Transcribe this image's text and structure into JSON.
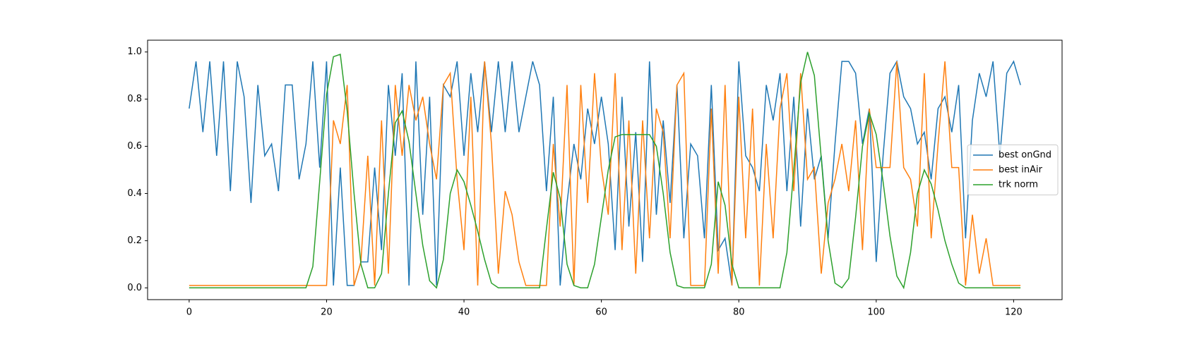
{
  "chart_data": {
    "type": "line",
    "x": [
      0,
      1,
      2,
      3,
      4,
      5,
      6,
      7,
      8,
      9,
      10,
      11,
      12,
      13,
      14,
      15,
      16,
      17,
      18,
      19,
      20,
      21,
      22,
      23,
      24,
      25,
      26,
      27,
      28,
      29,
      30,
      31,
      32,
      33,
      34,
      35,
      36,
      37,
      38,
      39,
      40,
      41,
      42,
      43,
      44,
      45,
      46,
      47,
      48,
      49,
      50,
      51,
      52,
      53,
      54,
      55,
      56,
      57,
      58,
      59,
      60,
      61,
      62,
      63,
      64,
      65,
      66,
      67,
      68,
      69,
      70,
      71,
      72,
      73,
      74,
      75,
      76,
      77,
      78,
      79,
      80,
      81,
      82,
      83,
      84,
      85,
      86,
      87,
      88,
      89,
      90,
      91,
      92,
      93,
      94,
      95,
      96,
      97,
      98,
      99,
      100,
      101,
      102,
      103,
      104,
      105,
      106,
      107,
      108,
      109,
      110,
      111,
      112,
      113,
      114,
      115,
      116,
      117,
      118,
      119,
      120,
      121
    ],
    "series": [
      {
        "name": "best onGnd",
        "color": "#1f77b4",
        "values": [
          0.76,
          0.96,
          0.66,
          0.96,
          0.56,
          0.96,
          0.41,
          0.96,
          0.81,
          0.36,
          0.86,
          0.56,
          0.61,
          0.41,
          0.86,
          0.86,
          0.46,
          0.61,
          0.96,
          0.51,
          0.96,
          0.01,
          0.51,
          0.01,
          0.01,
          0.11,
          0.11,
          0.51,
          0.16,
          0.86,
          0.56,
          0.91,
          0.01,
          0.96,
          0.31,
          0.81,
          0.01,
          0.86,
          0.81,
          0.96,
          0.56,
          0.91,
          0.66,
          0.96,
          0.66,
          0.96,
          0.66,
          0.96,
          0.66,
          0.81,
          0.96,
          0.86,
          0.41,
          0.81,
          0.01,
          0.36,
          0.61,
          0.46,
          0.76,
          0.61,
          0.81,
          0.61,
          0.16,
          0.81,
          0.26,
          0.66,
          0.11,
          0.96,
          0.31,
          0.71,
          0.36,
          0.86,
          0.21,
          0.61,
          0.56,
          0.21,
          0.86,
          0.16,
          0.21,
          0.01,
          0.96,
          0.56,
          0.51,
          0.41,
          0.86,
          0.71,
          0.91,
          0.41,
          0.81,
          0.26,
          0.76,
          0.46,
          0.56,
          0.21,
          0.61,
          0.96,
          0.96,
          0.91,
          0.61,
          0.76,
          0.11,
          0.56,
          0.91,
          0.96,
          0.81,
          0.76,
          0.61,
          0.66,
          0.46,
          0.76,
          0.81,
          0.66,
          0.86,
          0.21,
          0.71,
          0.91,
          0.81,
          0.96,
          0.56,
          0.91,
          0.96,
          0.86
        ]
      },
      {
        "name": "best inAir",
        "color": "#ff7f0e",
        "values": [
          0.01,
          0.01,
          0.01,
          0.01,
          0.01,
          0.01,
          0.01,
          0.01,
          0.01,
          0.01,
          0.01,
          0.01,
          0.01,
          0.01,
          0.01,
          0.01,
          0.01,
          0.01,
          0.01,
          0.01,
          0.01,
          0.71,
          0.61,
          0.86,
          0.01,
          0.11,
          0.56,
          0.01,
          0.71,
          0.06,
          0.86,
          0.56,
          0.86,
          0.71,
          0.81,
          0.61,
          0.46,
          0.86,
          0.91,
          0.46,
          0.16,
          0.81,
          0.01,
          0.96,
          0.61,
          0.06,
          0.41,
          0.31,
          0.11,
          0.01,
          0.01,
          0.01,
          0.01,
          0.61,
          0.26,
          0.86,
          0.01,
          0.86,
          0.36,
          0.91,
          0.51,
          0.31,
          0.91,
          0.16,
          0.71,
          0.06,
          0.71,
          0.21,
          0.76,
          0.66,
          0.21,
          0.86,
          0.91,
          0.01,
          0.01,
          0.01,
          0.76,
          0.06,
          0.86,
          0.01,
          0.81,
          0.21,
          0.76,
          0.01,
          0.61,
          0.21,
          0.76,
          0.91,
          0.41,
          0.91,
          0.46,
          0.51,
          0.06,
          0.36,
          0.46,
          0.61,
          0.41,
          0.71,
          0.16,
          0.76,
          0.51,
          0.51,
          0.51,
          0.96,
          0.51,
          0.46,
          0.26,
          0.91,
          0.21,
          0.61,
          0.96,
          0.51,
          0.51,
          0.01,
          0.31,
          0.06,
          0.21,
          0.01,
          0.01,
          0.01,
          0.01,
          0.01
        ]
      },
      {
        "name": "trk norm",
        "color": "#2ca02c",
        "values": [
          0,
          0,
          0,
          0,
          0,
          0,
          0,
          0,
          0,
          0,
          0,
          0,
          0,
          0,
          0,
          0,
          0,
          0,
          0.09,
          0.45,
          0.82,
          0.98,
          0.99,
          0.75,
          0.4,
          0.1,
          0,
          0,
          0.06,
          0.4,
          0.7,
          0.75,
          0.62,
          0.4,
          0.18,
          0.03,
          0,
          0.12,
          0.4,
          0.5,
          0.45,
          0.35,
          0.24,
          0.12,
          0.02,
          0,
          0,
          0,
          0,
          0,
          0,
          0,
          0.25,
          0.49,
          0.38,
          0.1,
          0.01,
          0,
          0,
          0.1,
          0.3,
          0.5,
          0.64,
          0.65,
          0.65,
          0.65,
          0.65,
          0.65,
          0.6,
          0.4,
          0.15,
          0.01,
          0,
          0,
          0,
          0,
          0.1,
          0.45,
          0.35,
          0.1,
          0,
          0,
          0,
          0,
          0,
          0,
          0,
          0.15,
          0.5,
          0.87,
          1.0,
          0.9,
          0.55,
          0.2,
          0.02,
          0,
          0.04,
          0.3,
          0.6,
          0.74,
          0.65,
          0.45,
          0.22,
          0.05,
          0,
          0.15,
          0.4,
          0.5,
          0.44,
          0.33,
          0.2,
          0.1,
          0.02,
          0,
          0,
          0,
          0,
          0,
          0,
          0,
          0,
          0
        ]
      }
    ],
    "xlim": [
      -6.05,
      127.05
    ],
    "xticks": [
      0,
      20,
      40,
      60,
      80,
      100,
      120
    ],
    "ylim": [
      -0.05,
      1.05
    ],
    "yticks": [
      {
        "value": 0,
        "label": "0.0"
      },
      {
        "value": 0.2,
        "label": "0.2"
      },
      {
        "value": 0.4,
        "label": "0.4"
      },
      {
        "value": 0.6,
        "label": "0.6"
      },
      {
        "value": 0.8,
        "label": "0.8"
      },
      {
        "value": 1,
        "label": "1.0"
      }
    ],
    "legend": "center right"
  }
}
